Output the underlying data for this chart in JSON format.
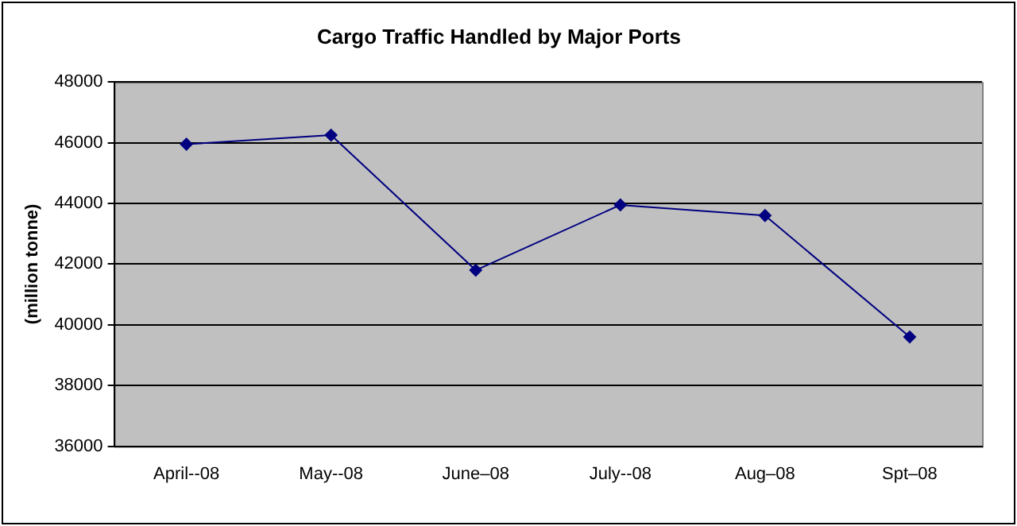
{
  "chart_data": {
    "type": "line",
    "title": "Cargo Traffic Handled by Major Ports",
    "ylabel": "(million tonne)",
    "categories": [
      "April--08",
      "May--08",
      "June–08",
      "July--08",
      "Aug–08",
      "Spt–08"
    ],
    "series": [
      {
        "color": "#000080",
        "values": [
          45950,
          46250,
          41800,
          43950,
          43600,
          39600
        ]
      }
    ],
    "ylim": [
      36000,
      48000
    ],
    "yticks": [
      36000,
      38000,
      40000,
      42000,
      44000,
      46000,
      48000
    ],
    "grid": "y",
    "legend": false,
    "marker": "diamond",
    "line_style": "solid"
  }
}
